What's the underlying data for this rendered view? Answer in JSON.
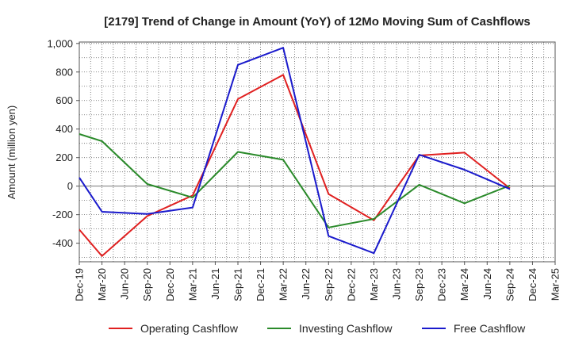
{
  "chart_data": {
    "type": "line",
    "title": "[2179]  Trend of Change in Amount (YoY) of 12Mo Moving Sum of Cashflows",
    "xlabel": "",
    "ylabel": "Amount (million yen)",
    "ylim": [
      -530,
      1010
    ],
    "yticks": [
      -400,
      -200,
      0,
      200,
      400,
      600,
      800,
      1000
    ],
    "ytick_labels": [
      "-400",
      "-200",
      "0",
      "200",
      "400",
      "600",
      "800",
      "1,000"
    ],
    "categories": [
      "Dec-19",
      "Mar-20",
      "Jun-20",
      "Sep-20",
      "Dec-20",
      "Mar-21",
      "Jun-21",
      "Sep-21",
      "Dec-21",
      "Mar-22",
      "Jun-22",
      "Sep-22",
      "Dec-22",
      "Mar-23",
      "Jun-23",
      "Sep-23",
      "Dec-23",
      "Mar-24",
      "Jun-24",
      "Sep-24",
      "Dec-24",
      "Mar-25"
    ],
    "grid": true,
    "legend_position": "bottom",
    "series": [
      {
        "name": "Operating Cashflow",
        "color": "#e02020",
        "values": [
          -305,
          -490,
          null,
          -210,
          null,
          -65,
          null,
          610,
          null,
          780,
          null,
          -55,
          null,
          -240,
          null,
          215,
          null,
          235,
          null,
          -15,
          null,
          null
        ]
      },
      {
        "name": "Investing Cashflow",
        "color": "#2a8a2a",
        "values": [
          365,
          315,
          null,
          15,
          null,
          -80,
          null,
          240,
          null,
          185,
          null,
          -290,
          null,
          -230,
          null,
          10,
          null,
          -120,
          null,
          5,
          null,
          null
        ]
      },
      {
        "name": "Free Cashflow",
        "color": "#1a1acc",
        "values": [
          60,
          -180,
          null,
          -195,
          null,
          -150,
          null,
          850,
          null,
          970,
          null,
          -350,
          null,
          -470,
          null,
          220,
          null,
          115,
          null,
          -20,
          null,
          null
        ]
      }
    ]
  }
}
